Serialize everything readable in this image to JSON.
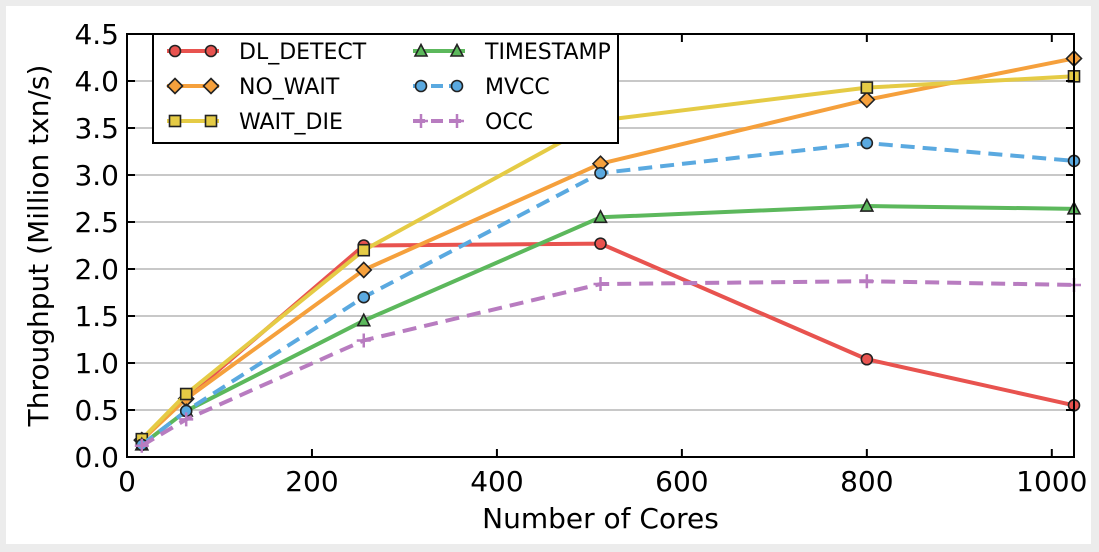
{
  "chart_data": {
    "type": "line",
    "title": "",
    "xlabel": "Number of Cores",
    "ylabel": "Throughput (Million txn/s)",
    "xlim": [
      0,
      1024
    ],
    "ylim": [
      0,
      4.5
    ],
    "xticks": [
      0,
      200,
      400,
      600,
      800,
      1000
    ],
    "xtick_labels": [
      "0",
      "200",
      "400",
      "600",
      "800",
      "1000"
    ],
    "yticks": [
      0,
      0.5,
      1.0,
      1.5,
      2.0,
      2.5,
      3.0,
      3.5,
      4.0,
      4.5
    ],
    "ytick_labels": [
      "0.0",
      "0.5",
      "1.0",
      "1.5",
      "2.0",
      "2.5",
      "3.0",
      "3.5",
      "4.0",
      "4.5"
    ],
    "grid": "horizontal",
    "legend_position": "top-left",
    "x": [
      16,
      64,
      256,
      512,
      800,
      1024
    ],
    "series": [
      {
        "name": "DL_DETECT",
        "color": "#e8534f",
        "marker": "circle",
        "dash": "solid",
        "values": [
          0.18,
          0.63,
          2.25,
          2.27,
          1.04,
          0.55
        ]
      },
      {
        "name": "NO_WAIT",
        "color": "#f5a03c",
        "marker": "diamond",
        "dash": "solid",
        "values": [
          0.18,
          0.62,
          1.99,
          3.12,
          3.8,
          4.24
        ]
      },
      {
        "name": "WAIT_DIE",
        "color": "#e5cb45",
        "marker": "square",
        "dash": "solid",
        "values": [
          0.19,
          0.67,
          2.2,
          3.58,
          3.93,
          4.05
        ]
      },
      {
        "name": "TIMESTAMP",
        "color": "#5cb85c",
        "marker": "triangle",
        "dash": "solid",
        "values": [
          0.13,
          0.49,
          1.45,
          2.55,
          2.67,
          2.64
        ]
      },
      {
        "name": "MVCC",
        "color": "#5aa9e0",
        "marker": "circle",
        "dash": "dashed",
        "values": [
          0.13,
          0.49,
          1.7,
          3.02,
          3.34,
          3.15
        ]
      },
      {
        "name": "OCC",
        "color": "#b87cc0",
        "marker": "plus",
        "dash": "dashed",
        "values": [
          0.12,
          0.4,
          1.24,
          1.84,
          1.87,
          1.83
        ]
      }
    ]
  }
}
